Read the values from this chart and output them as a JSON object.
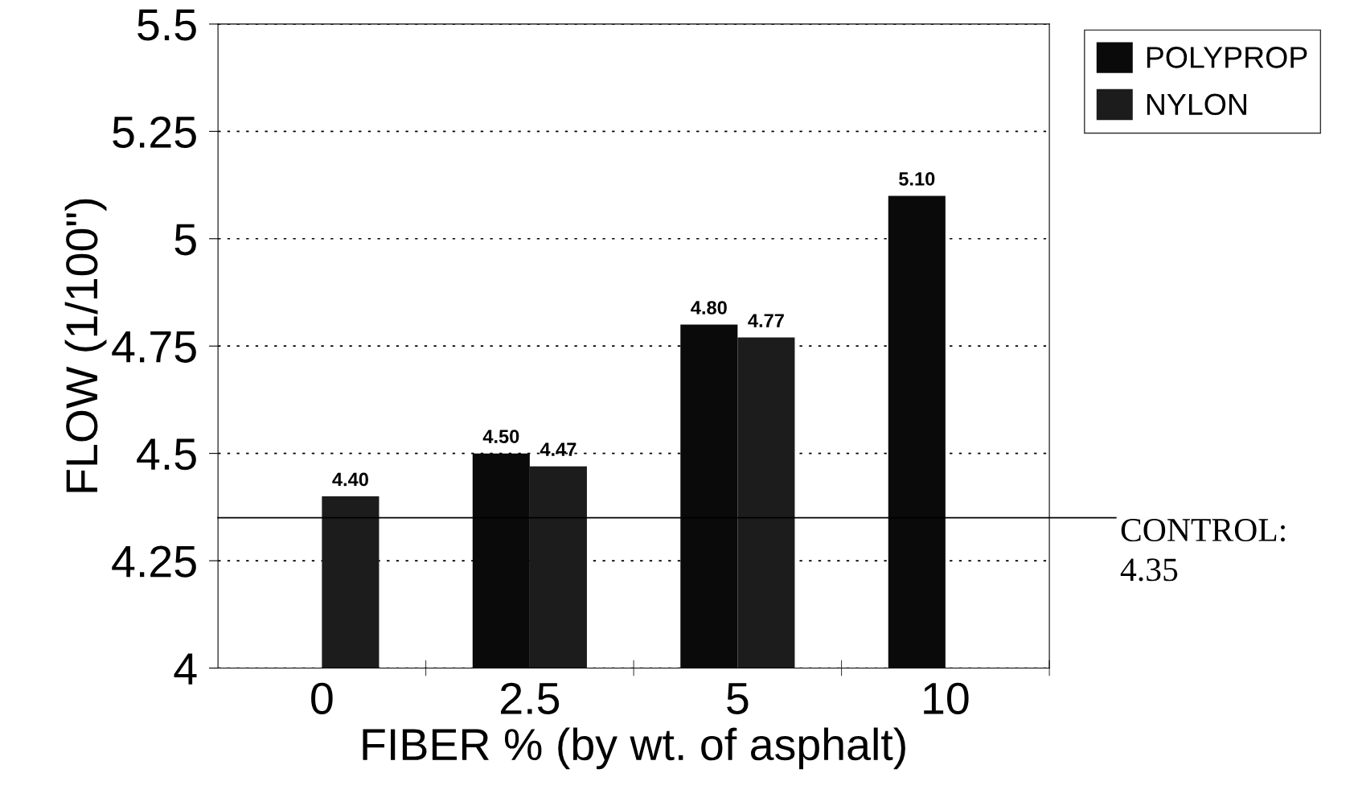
{
  "chart_data": {
    "type": "bar",
    "xlabel": "FIBER % (by wt. of asphalt)",
    "ylabel": "FLOW (1/100\")",
    "categories": [
      "0",
      "2.5",
      "5",
      "10"
    ],
    "series": [
      {
        "name": "POLYPROP",
        "color": "#0a0a0a",
        "values": [
          null,
          4.5,
          4.8,
          5.1
        ],
        "value_labels": [
          null,
          "4.50",
          "4.80",
          "5.10"
        ]
      },
      {
        "name": "NYLON",
        "color": "#1c1c1c",
        "values": [
          4.4,
          4.47,
          4.77,
          null
        ],
        "value_labels": [
          "4.40",
          "4.47",
          "4.77",
          null
        ]
      }
    ],
    "ylim": [
      4,
      5.5
    ],
    "yticks": [
      4,
      4.25,
      4.5,
      4.75,
      5,
      5.25,
      5.5
    ],
    "ref_lines": [
      {
        "axis": "y",
        "value": 4.35,
        "label": "CONTROL:\n4.35",
        "color": "#000000",
        "line_style": "solid"
      }
    ],
    "grid": "y",
    "legend": "top right"
  }
}
